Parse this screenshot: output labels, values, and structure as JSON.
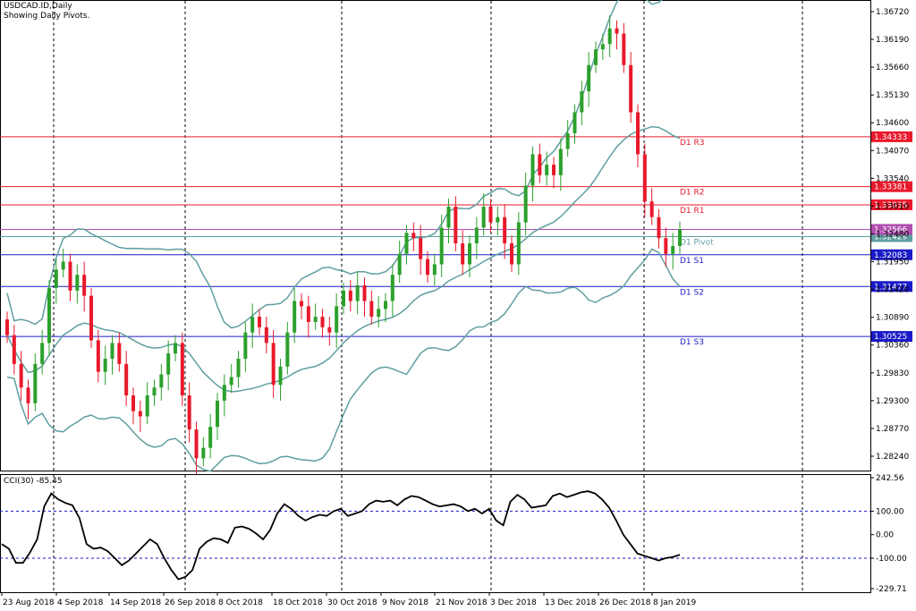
{
  "header": {
    "symbol": "USDCAD.ID,Daily",
    "subtitle": "Showing Daily Pivots."
  },
  "indicator": {
    "label": "CCI(30) -85.45"
  },
  "colors": {
    "bull": "#2ca02c",
    "bear": "#e8192c",
    "bands": "#5f9ea0",
    "resistance": "#e8192c",
    "support": "#1a1ac8",
    "pivot": "#b04fb0",
    "cci": "#000000",
    "cci_levels": "#1a1ac8"
  },
  "chart_data": [
    {
      "type": "candlestick",
      "title": "USDCAD.ID,Daily",
      "subtitle": "Showing Daily Pivots.",
      "ylim": [
        1.2795,
        1.3689
      ],
      "y_ticks": [
        "1.36720",
        "1.36190",
        "1.35660",
        "1.35130",
        "1.34600",
        "1.34070",
        "1.33540",
        "1.33010",
        "1.32480",
        "1.31950",
        "1.31420",
        "1.30890",
        "1.30360",
        "1.29830",
        "1.29300",
        "1.28770",
        "1.28240"
      ],
      "x_ticks": [
        "23 Aug 2018",
        "4 Sep 2018",
        "14 Sep 2018",
        "26 Sep 2018",
        "8 Oct 2018",
        "18 Oct 2018",
        "30 Oct 2018",
        "9 Nov 2018",
        "21 Nov 2018",
        "3 Dec 2018",
        "13 Dec 2018",
        "26 Dec 2018",
        "8 Jan 2019"
      ],
      "pivot_levels": [
        {
          "name": "D1 R3",
          "value": 1.34333,
          "price_label": "1.34333",
          "kind": "resistance"
        },
        {
          "name": "D1 R2",
          "value": 1.33381,
          "price_label": "1.33381",
          "kind": "resistance"
        },
        {
          "name": "D1 R1",
          "value": 1.33035,
          "price_label": "1.33035",
          "kind": "resistance"
        },
        {
          "name": "D1 Pivot",
          "value": 1.32429,
          "price_label": "1.32429",
          "kind": "pivot"
        },
        {
          "name": "D1 S1",
          "value": 1.32083,
          "price_label": "1.32083",
          "kind": "support"
        },
        {
          "name": "D1 S2",
          "value": 1.31477,
          "price_label": "1.31477",
          "kind": "support"
        },
        {
          "name": "D1 S3",
          "value": 1.30525,
          "price_label": "1.30525",
          "kind": "support"
        }
      ],
      "current_price": {
        "value": 1.32566,
        "label": "1.32566"
      },
      "closes": [
        1.3055,
        1.3,
        1.2955,
        1.2925,
        1.3,
        1.304,
        1.3145,
        1.318,
        1.3195,
        1.314,
        1.317,
        1.313,
        1.3045,
        1.2985,
        1.301,
        1.304,
        1.3,
        1.294,
        1.291,
        1.29,
        1.294,
        1.2955,
        1.298,
        1.302,
        1.304,
        1.294,
        1.2875,
        1.282,
        1.284,
        1.288,
        1.293,
        1.296,
        1.2975,
        1.301,
        1.306,
        1.309,
        1.307,
        1.304,
        1.296,
        1.2995,
        1.306,
        1.312,
        1.311,
        1.308,
        1.309,
        1.307,
        1.306,
        1.311,
        1.314,
        1.312,
        1.315,
        1.312,
        1.309,
        1.3105,
        1.312,
        1.317,
        1.321,
        1.325,
        1.324,
        1.32,
        1.317,
        1.319,
        1.326,
        1.33,
        1.323,
        1.319,
        1.323,
        1.326,
        1.33,
        1.327,
        1.328,
        1.323,
        1.319,
        1.327,
        1.334,
        1.34,
        1.336,
        1.338,
        1.336,
        1.341,
        1.344,
        1.348,
        1.352,
        1.357,
        1.36,
        1.361,
        1.364,
        1.363,
        1.357,
        1.348,
        1.34,
        1.331,
        1.328,
        1.324,
        1.321,
        1.3225,
        1.32566
      ],
      "cci": {
        "label": "CCI(30) -85.45",
        "ylim": [
          -229.71,
          242.56
        ],
        "y_ticks": [
          "242.56",
          "100.00",
          "0.00",
          "-100.00",
          "-229.71"
        ],
        "levels": [
          100,
          -100
        ],
        "values": [
          -40,
          -60,
          -120,
          -120,
          -75,
          -20,
          120,
          175,
          150,
          135,
          125,
          70,
          -40,
          -60,
          -55,
          -70,
          -100,
          -130,
          -110,
          -80,
          -50,
          -20,
          -40,
          -100,
          -150,
          -190,
          -180,
          -150,
          -60,
          -30,
          -15,
          -20,
          -35,
          30,
          35,
          25,
          5,
          -20,
          20,
          90,
          130,
          110,
          80,
          60,
          75,
          85,
          80,
          100,
          110,
          80,
          90,
          100,
          130,
          145,
          140,
          145,
          125,
          150,
          165,
          160,
          145,
          130,
          120,
          125,
          130,
          120,
          100,
          110,
          90,
          110,
          60,
          40,
          140,
          170,
          150,
          115,
          120,
          125,
          165,
          175,
          160,
          170,
          180,
          185,
          175,
          150,
          115,
          60,
          0,
          -40,
          -80,
          -90,
          -100,
          -110,
          -100,
          -95,
          -85.45
        ]
      }
    }
  ]
}
